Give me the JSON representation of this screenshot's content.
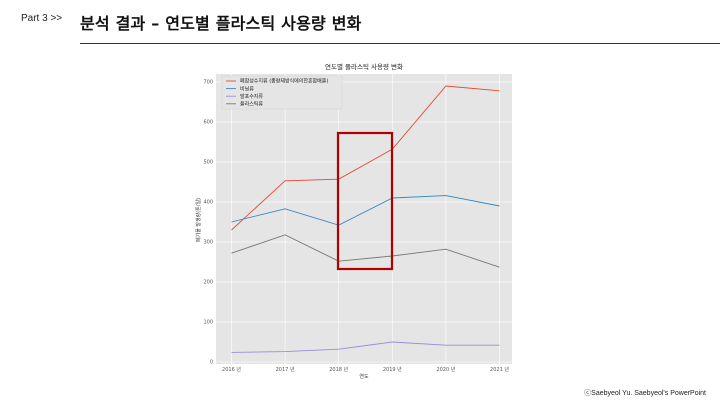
{
  "header": {
    "part": "Part 3  >>",
    "title": "분석 결과 – 연도별 플라스틱 사용량 변화"
  },
  "footer": {
    "credit": "ⓒSaebyeol Yu. Saebyeol's PowerPoint"
  },
  "colors": {
    "plot_bg": "#e5e5e5",
    "grid": "#ffffff",
    "highlight_box": "#b00000"
  },
  "chart_data": {
    "type": "line",
    "title": "연도별 플라스틱 사용량 변화",
    "xlabel": "연도",
    "ylabel": "폐기물 발생량(톤/일)",
    "categories": [
      "2016 년",
      "2017 년",
      "2018 년",
      "2019 년",
      "2020 년",
      "2021 년"
    ],
    "ylim": [
      -5,
      720
    ],
    "yticks": [
      0,
      100,
      200,
      300,
      400,
      500,
      600,
      700
    ],
    "grid": true,
    "legend_position": "top-left",
    "series": [
      {
        "name": "폐합성수지류 (종량제방식에의한혼합배출)",
        "color": "#e24a33",
        "values": [
          330,
          453,
          457,
          532,
          690,
          678
        ]
      },
      {
        "name": "비닐류",
        "color": "#348abd",
        "values": [
          350,
          383,
          342,
          410,
          416,
          390
        ]
      },
      {
        "name": "발포수지류",
        "color": "#988ed5",
        "values": [
          24,
          26,
          32,
          50,
          42,
          42
        ]
      },
      {
        "name": "플라스틱류",
        "color": "#777777",
        "values": [
          272,
          318,
          252,
          265,
          282,
          237
        ]
      }
    ],
    "highlight": {
      "category": "2018 년 – 2019 년"
    }
  }
}
